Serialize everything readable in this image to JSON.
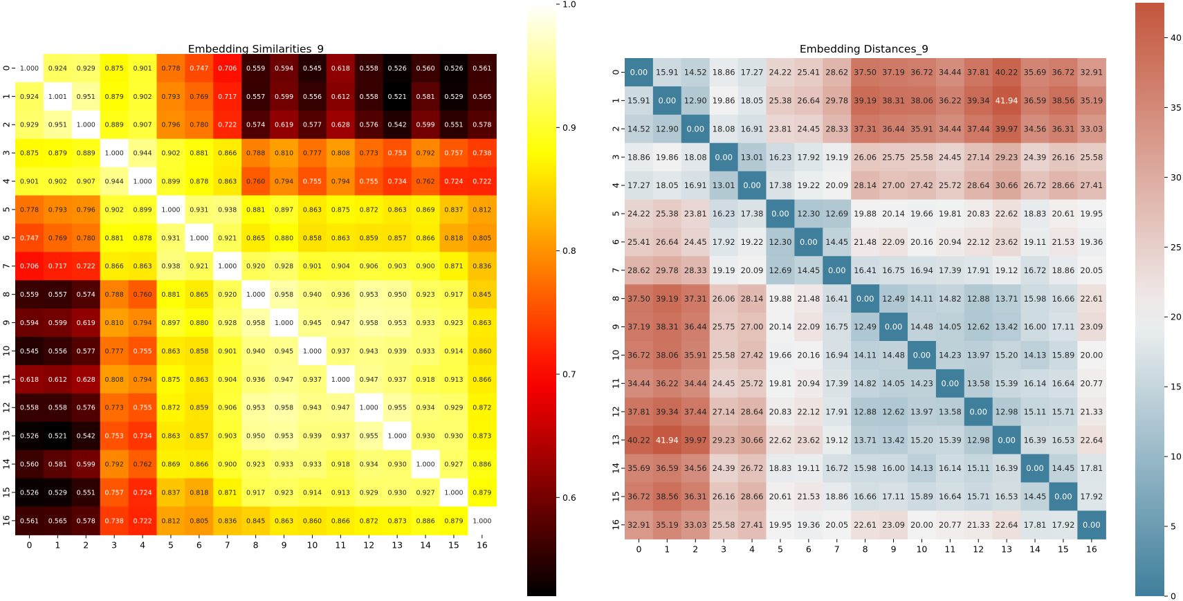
{
  "chart_data": [
    {
      "type": "heatmap",
      "title": "Embedding Similarities_9",
      "xlabel": "",
      "ylabel": "",
      "x_labels": [
        "0",
        "1",
        "2",
        "3",
        "4",
        "5",
        "6",
        "7",
        "8",
        "9",
        "10",
        "11",
        "12",
        "13",
        "14",
        "15",
        "16"
      ],
      "y_labels": [
        "0",
        "1",
        "2",
        "3",
        "4",
        "5",
        "6",
        "7",
        "8",
        "9",
        "10",
        "11",
        "12",
        "13",
        "14",
        "15",
        "16"
      ],
      "colormap": "hot",
      "vmin": 0.52,
      "vmax": 1.0,
      "colorbar_ticks": [
        "0.6",
        "0.7",
        "0.8",
        "0.9",
        "1.0"
      ],
      "colorbar_tick_values": [
        0.6,
        0.7,
        0.8,
        0.9,
        1.0
      ],
      "cell_labels": [
        [
          "1.000",
          "0.924",
          "0.929",
          "0.875",
          "0.901",
          "0.778",
          "0.747",
          "0.706",
          "0.559",
          "0.594",
          "0.545",
          "0.618",
          "0.558",
          "0.526",
          "0.560",
          "0.526",
          "0.561"
        ],
        [
          "0.924",
          "1.001",
          "0.951",
          "0.879",
          "0.902",
          "0.793",
          "0.769",
          "0.717",
          "0.557",
          "0.599",
          "0.556",
          "0.612",
          "0.558",
          "0.521",
          "0.581",
          "0.529",
          "0.565"
        ],
        [
          "0.929",
          "0.951",
          "1.000",
          "0.889",
          "0.907",
          "0.796",
          "0.780",
          "0.722",
          "0.574",
          "0.619",
          "0.577",
          "0.628",
          "0.576",
          "0.542",
          "0.599",
          "0.551",
          "0.578"
        ],
        [
          "0.875",
          "0.879",
          "0.889",
          "1.000",
          "0.944",
          "0.902",
          "0.881",
          "0.866",
          "0.788",
          "0.810",
          "0.777",
          "0.808",
          "0.773",
          "0.753",
          "0.792",
          "0.757",
          "0.738"
        ],
        [
          "0.901",
          "0.902",
          "0.907",
          "0.944",
          "1.000",
          "0.899",
          "0.878",
          "0.863",
          "0.760",
          "0.794",
          "0.755",
          "0.794",
          "0.755",
          "0.734",
          "0.762",
          "0.724",
          "0.722"
        ],
        [
          "0.778",
          "0.793",
          "0.796",
          "0.902",
          "0.899",
          "1.000",
          "0.931",
          "0.938",
          "0.881",
          "0.897",
          "0.863",
          "0.875",
          "0.872",
          "0.863",
          "0.869",
          "0.837",
          "0.812"
        ],
        [
          "0.747",
          "0.769",
          "0.780",
          "0.881",
          "0.878",
          "0.931",
          "1.000",
          "0.921",
          "0.865",
          "0.880",
          "0.858",
          "0.863",
          "0.859",
          "0.857",
          "0.866",
          "0.818",
          "0.805"
        ],
        [
          "0.706",
          "0.717",
          "0.722",
          "0.866",
          "0.863",
          "0.938",
          "0.921",
          "1.000",
          "0.920",
          "0.928",
          "0.901",
          "0.904",
          "0.906",
          "0.903",
          "0.900",
          "0.871",
          "0.836"
        ],
        [
          "0.559",
          "0.557",
          "0.574",
          "0.788",
          "0.760",
          "0.881",
          "0.865",
          "0.920",
          "1.000",
          "0.958",
          "0.940",
          "0.936",
          "0.953",
          "0.950",
          "0.923",
          "0.917",
          "0.845"
        ],
        [
          "0.594",
          "0.599",
          "0.619",
          "0.810",
          "0.794",
          "0.897",
          "0.880",
          "0.928",
          "0.958",
          "1.000",
          "0.945",
          "0.947",
          "0.958",
          "0.953",
          "0.933",
          "0.923",
          "0.863"
        ],
        [
          "0.545",
          "0.556",
          "0.577",
          "0.777",
          "0.755",
          "0.863",
          "0.858",
          "0.901",
          "0.940",
          "0.945",
          "1.000",
          "0.937",
          "0.943",
          "0.939",
          "0.933",
          "0.914",
          "0.860"
        ],
        [
          "0.618",
          "0.612",
          "0.628",
          "0.808",
          "0.794",
          "0.875",
          "0.863",
          "0.904",
          "0.936",
          "0.947",
          "0.937",
          "1.000",
          "0.947",
          "0.937",
          "0.918",
          "0.913",
          "0.866"
        ],
        [
          "0.558",
          "0.558",
          "0.576",
          "0.773",
          "0.755",
          "0.872",
          "0.859",
          "0.906",
          "0.953",
          "0.958",
          "0.943",
          "0.947",
          "1.000",
          "0.955",
          "0.934",
          "0.929",
          "0.872"
        ],
        [
          "0.526",
          "0.521",
          "0.542",
          "0.753",
          "0.734",
          "0.863",
          "0.857",
          "0.903",
          "0.950",
          "0.953",
          "0.939",
          "0.937",
          "0.955",
          "1.000",
          "0.930",
          "0.930",
          "0.873"
        ],
        [
          "0.560",
          "0.581",
          "0.599",
          "0.792",
          "0.762",
          "0.869",
          "0.866",
          "0.900",
          "0.923",
          "0.933",
          "0.933",
          "0.918",
          "0.934",
          "0.930",
          "1.000",
          "0.927",
          "0.886"
        ],
        [
          "0.526",
          "0.529",
          "0.551",
          "0.757",
          "0.724",
          "0.837",
          "0.818",
          "0.871",
          "0.917",
          "0.923",
          "0.914",
          "0.913",
          "0.929",
          "0.930",
          "0.927",
          "1.000",
          "0.879"
        ],
        [
          "0.561",
          "0.565",
          "0.578",
          "0.738",
          "0.722",
          "0.812",
          "0.805",
          "0.836",
          "0.845",
          "0.863",
          "0.860",
          "0.866",
          "0.872",
          "0.873",
          "0.886",
          "0.879",
          "1.000"
        ]
      ]
    },
    {
      "type": "heatmap",
      "title": "Embedding Distances_9",
      "xlabel": "",
      "ylabel": "",
      "x_labels": [
        "0",
        "1",
        "2",
        "3",
        "4",
        "5",
        "6",
        "7",
        "8",
        "9",
        "10",
        "11",
        "12",
        "13",
        "14",
        "15",
        "16"
      ],
      "y_labels": [
        "0",
        "1",
        "2",
        "3",
        "4",
        "5",
        "6",
        "7",
        "8",
        "9",
        "10",
        "11",
        "12",
        "13",
        "14",
        "15",
        "16"
      ],
      "colormap": "diverging blue-white-red",
      "colors": {
        "low": "#3f7f9c",
        "mid": "#f2f2f2",
        "high": "#c4553c"
      },
      "vmin": 0,
      "vcenter": 20,
      "vmax": 42.5,
      "colorbar_ticks": [
        "0",
        "5",
        "10",
        "15",
        "20",
        "25",
        "30",
        "35",
        "40"
      ],
      "colorbar_tick_values": [
        0,
        5,
        10,
        15,
        20,
        25,
        30,
        35,
        40
      ],
      "cell_labels": [
        [
          "0.00",
          "15.91",
          "14.52",
          "18.86",
          "17.27",
          "24.22",
          "25.41",
          "28.62",
          "37.50",
          "37.19",
          "36.72",
          "34.44",
          "37.81",
          "40.22",
          "35.69",
          "36.72",
          "32.91"
        ],
        [
          "15.91",
          "0.00",
          "12.90",
          "19.86",
          "18.05",
          "25.38",
          "26.64",
          "29.78",
          "39.19",
          "38.31",
          "38.06",
          "36.22",
          "39.34",
          "41.94",
          "36.59",
          "38.56",
          "35.19"
        ],
        [
          "14.52",
          "12.90",
          "0.00",
          "18.08",
          "16.91",
          "23.81",
          "24.45",
          "28.33",
          "37.31",
          "36.44",
          "35.91",
          "34.44",
          "37.44",
          "39.97",
          "34.56",
          "36.31",
          "33.03"
        ],
        [
          "18.86",
          "19.86",
          "18.08",
          "0.00",
          "13.01",
          "16.23",
          "17.92",
          "19.19",
          "26.06",
          "25.75",
          "25.58",
          "24.45",
          "27.14",
          "29.23",
          "24.39",
          "26.16",
          "25.58"
        ],
        [
          "17.27",
          "18.05",
          "16.91",
          "13.01",
          "0.00",
          "17.38",
          "19.22",
          "20.09",
          "28.14",
          "27.00",
          "27.42",
          "25.72",
          "28.64",
          "30.66",
          "26.72",
          "28.66",
          "27.41"
        ],
        [
          "24.22",
          "25.38",
          "23.81",
          "16.23",
          "17.38",
          "0.00",
          "12.30",
          "12.69",
          "19.88",
          "20.14",
          "19.66",
          "19.81",
          "20.83",
          "22.62",
          "18.83",
          "20.61",
          "19.95"
        ],
        [
          "25.41",
          "26.64",
          "24.45",
          "17.92",
          "19.22",
          "12.30",
          "0.00",
          "14.45",
          "21.48",
          "22.09",
          "20.16",
          "20.94",
          "22.12",
          "23.62",
          "19.11",
          "21.53",
          "19.36"
        ],
        [
          "28.62",
          "29.78",
          "28.33",
          "19.19",
          "20.09",
          "12.69",
          "14.45",
          "0.00",
          "16.41",
          "16.75",
          "16.94",
          "17.39",
          "17.91",
          "19.12",
          "16.72",
          "18.86",
          "20.05"
        ],
        [
          "37.50",
          "39.19",
          "37.31",
          "26.06",
          "28.14",
          "19.88",
          "21.48",
          "16.41",
          "0.00",
          "12.49",
          "14.11",
          "14.82",
          "12.88",
          "13.71",
          "15.98",
          "16.66",
          "22.61"
        ],
        [
          "37.19",
          "38.31",
          "36.44",
          "25.75",
          "27.00",
          "20.14",
          "22.09",
          "16.75",
          "12.49",
          "0.00",
          "14.48",
          "14.05",
          "12.62",
          "13.42",
          "16.00",
          "17.11",
          "23.09"
        ],
        [
          "36.72",
          "38.06",
          "35.91",
          "25.58",
          "27.42",
          "19.66",
          "20.16",
          "16.94",
          "14.11",
          "14.48",
          "0.00",
          "14.23",
          "13.97",
          "15.20",
          "14.13",
          "15.89",
          "20.00"
        ],
        [
          "34.44",
          "36.22",
          "34.44",
          "24.45",
          "25.72",
          "19.81",
          "20.94",
          "17.39",
          "14.82",
          "14.05",
          "14.23",
          "0.00",
          "13.58",
          "15.39",
          "16.14",
          "16.64",
          "20.77"
        ],
        [
          "37.81",
          "39.34",
          "37.44",
          "27.14",
          "28.64",
          "20.83",
          "22.12",
          "17.91",
          "12.88",
          "12.62",
          "13.97",
          "13.58",
          "0.00",
          "12.98",
          "15.11",
          "15.71",
          "21.33"
        ],
        [
          "40.22",
          "41.94",
          "39.97",
          "29.23",
          "30.66",
          "22.62",
          "23.62",
          "19.12",
          "13.71",
          "13.42",
          "15.20",
          "15.39",
          "12.98",
          "0.00",
          "16.39",
          "16.53",
          "22.64"
        ],
        [
          "35.69",
          "36.59",
          "34.56",
          "24.39",
          "26.72",
          "18.83",
          "19.11",
          "16.72",
          "15.98",
          "16.00",
          "14.13",
          "16.14",
          "15.11",
          "16.39",
          "0.00",
          "14.45",
          "17.81"
        ],
        [
          "36.72",
          "38.56",
          "36.31",
          "26.16",
          "28.66",
          "20.61",
          "21.53",
          "18.86",
          "16.66",
          "17.11",
          "15.89",
          "16.64",
          "15.71",
          "16.53",
          "14.45",
          "0.00",
          "17.92"
        ],
        [
          "32.91",
          "35.19",
          "33.03",
          "25.58",
          "27.41",
          "19.95",
          "19.36",
          "20.05",
          "22.61",
          "23.09",
          "20.00",
          "20.77",
          "21.33",
          "22.64",
          "17.81",
          "17.92",
          "0.00"
        ]
      ]
    }
  ]
}
